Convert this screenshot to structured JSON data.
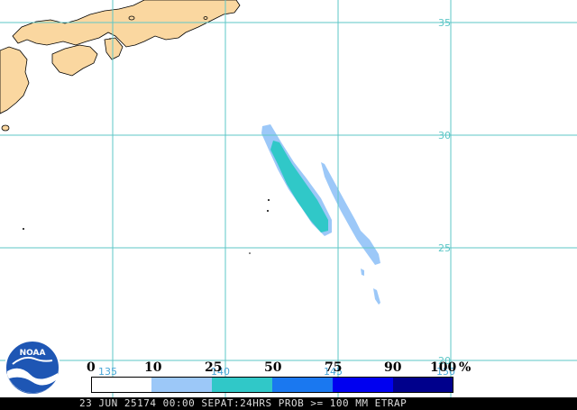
{
  "map": {
    "background_color": "#ffffff",
    "land_color": "#fad7a0",
    "grid_color": "#5ec7c7",
    "latitude_labels": [
      "35",
      "30",
      "25",
      "20"
    ],
    "longitude_labels": [
      "135",
      "140",
      "145",
      "150"
    ]
  },
  "legend": {
    "ticks": [
      "0",
      "10",
      "25",
      "50",
      "75",
      "90",
      "100"
    ],
    "unit": "%",
    "bins": [
      {
        "range": "0-10",
        "color": "#ffffff"
      },
      {
        "range": "10-25",
        "color": "#9cc8f8"
      },
      {
        "range": "25-50",
        "color": "#30c8c8"
      },
      {
        "range": "50-75",
        "color": "#1a78f0"
      },
      {
        "range": "75-90",
        "color": "#0000f0"
      },
      {
        "range": "90-100",
        "color": "#00008c"
      }
    ]
  },
  "status_text": "23 JUN 25174 00:00 SEPAT:24HRS PROB >= 100 MM ETRAP",
  "logo": {
    "text": "NOAA",
    "icon": "noaa-logo-icon"
  }
}
